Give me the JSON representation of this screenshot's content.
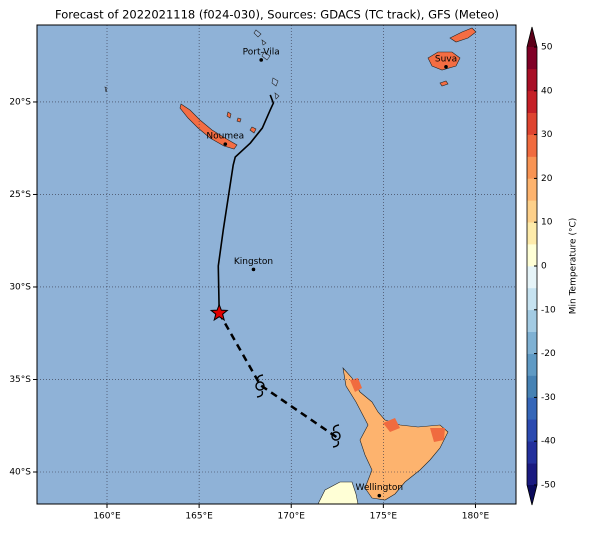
{
  "map": {
    "title": "Forecast of 2022021118 (f024-030), Sources: GDACS (TC track), GFS (Meteo)",
    "xlim": [
      156.2,
      182.2
    ],
    "ylim": [
      -41.73,
      -15.84
    ],
    "xticks": [
      {
        "value": 160,
        "label": "160°E"
      },
      {
        "value": 165,
        "label": "165°E"
      },
      {
        "value": 170,
        "label": "170°E"
      },
      {
        "value": 175,
        "label": "175°E"
      },
      {
        "value": 180,
        "label": "180°E"
      }
    ],
    "yticks": [
      {
        "value": -20,
        "label": "20°S"
      },
      {
        "value": -25,
        "label": "25°S"
      },
      {
        "value": -30,
        "label": "30°S"
      },
      {
        "value": -35,
        "label": "35°S"
      },
      {
        "value": -40,
        "label": "40°S"
      }
    ],
    "grid": true,
    "ocean_color": "#8fb2d7",
    "cities": [
      {
        "name": "Port-Vila",
        "lon": 168.37,
        "lat": -17.73
      },
      {
        "name": "Suva",
        "lon": 178.4,
        "lat": -18.1
      },
      {
        "name": "Noumea",
        "lon": 166.42,
        "lat": -22.28
      },
      {
        "name": "Kingston",
        "lon": 167.95,
        "lat": -29.05
      },
      {
        "name": "Wellington",
        "lon": 174.78,
        "lat": -41.28
      }
    ],
    "past_track": {
      "lon": [
        168.86,
        169.03,
        168.86,
        168.43,
        167.78,
        166.96,
        166.85,
        166.31,
        166.04,
        166.09
      ],
      "lat": [
        -19.62,
        -20.06,
        -20.43,
        -21.41,
        -22.22,
        -22.98,
        -23.41,
        -26.92,
        -28.87,
        -31.41
      ]
    },
    "forecast_track": {
      "lon": [
        166.09,
        168.32,
        172.45
      ],
      "lat": [
        -31.41,
        -35.3,
        -38.11
      ]
    },
    "current_position": {
      "lon": 166.09,
      "lat": -31.41
    },
    "colorbar": {
      "label": "Min Temperature (°C)",
      "clim": [
        -50,
        50
      ],
      "ticks": [
        -50,
        -40,
        -30,
        -20,
        -10,
        0,
        10,
        20,
        30,
        40,
        50
      ],
      "colors": [
        "#1a1a80",
        "#23309c",
        "#2b4ab0",
        "#3566b8",
        "#4682b4",
        "#5f9ac4",
        "#7fb1d3",
        "#a3cbe3",
        "#c6e2f0",
        "#e6f4f8",
        "#ffffd6",
        "#feebaa",
        "#fdd08a",
        "#fdb36e",
        "#f89454",
        "#f06b3f",
        "#de4430",
        "#c52027",
        "#a80f26",
        "#800026"
      ],
      "under": "#0b0b5c",
      "over": "#5c0019"
    }
  }
}
